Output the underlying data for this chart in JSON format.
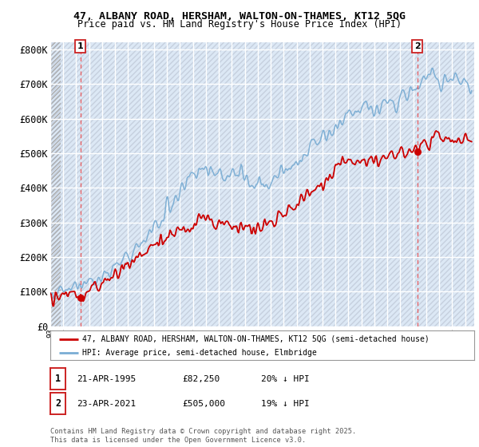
{
  "title1": "47, ALBANY ROAD, HERSHAM, WALTON-ON-THAMES, KT12 5QG",
  "title2": "Price paid vs. HM Land Registry's House Price Index (HPI)",
  "ylabel_ticks": [
    "£0",
    "£100K",
    "£200K",
    "£300K",
    "£400K",
    "£500K",
    "£600K",
    "£700K",
    "£800K"
  ],
  "ytick_vals": [
    0,
    100000,
    200000,
    300000,
    400000,
    500000,
    600000,
    700000,
    800000
  ],
  "ylim": [
    0,
    820000
  ],
  "xlim_start": 1993.0,
  "xlim_end": 2025.7,
  "legend_line1": "47, ALBANY ROAD, HERSHAM, WALTON-ON-THAMES, KT12 5QG (semi-detached house)",
  "legend_line2": "HPI: Average price, semi-detached house, Elmbridge",
  "marker1_x": 1995.31,
  "marker1_y": 82250,
  "marker2_x": 2021.31,
  "marker2_y": 505000,
  "footnote": "Contains HM Land Registry data © Crown copyright and database right 2025.\nThis data is licensed under the Open Government Licence v3.0.",
  "red_color": "#cc0000",
  "blue_color": "#7aadd4",
  "bg_color": "#dce8f5",
  "grid_color": "#ffffff",
  "dashed_line_color": "#ee4444",
  "ann_date1": "21-APR-1995",
  "ann_price1": "£82,250",
  "ann_hpi1": "20% ↓ HPI",
  "ann_date2": "23-APR-2021",
  "ann_price2": "£505,000",
  "ann_hpi2": "19% ↓ HPI"
}
